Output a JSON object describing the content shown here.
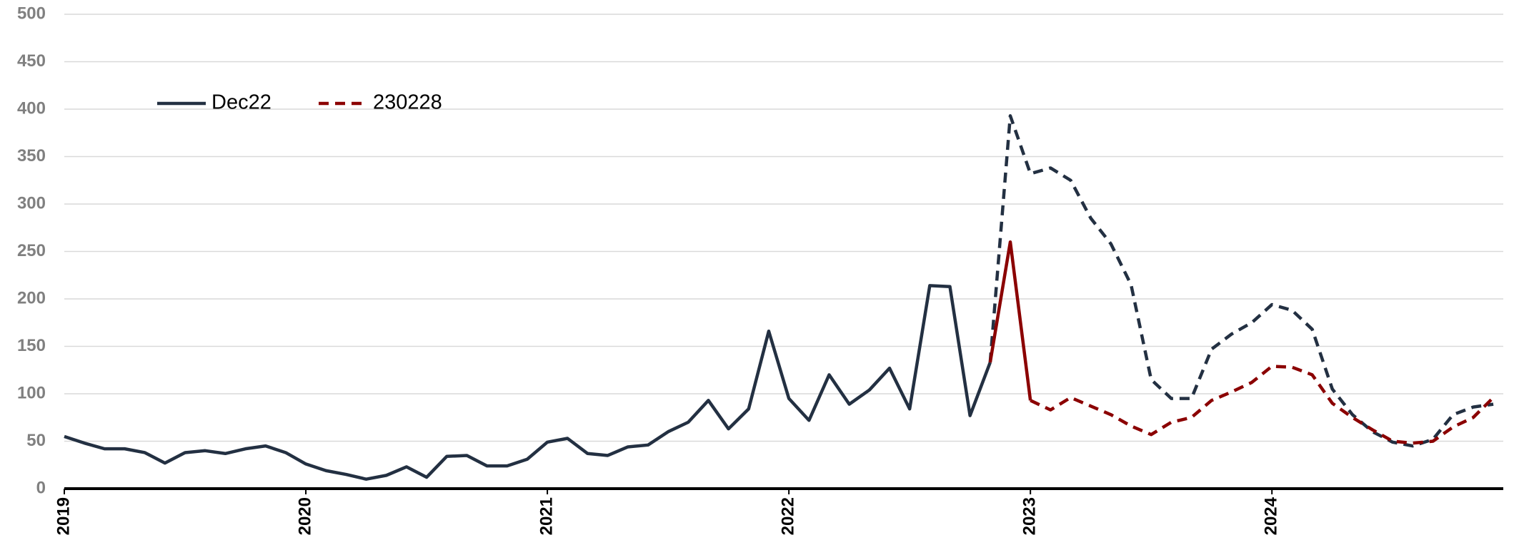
{
  "chart_data": {
    "type": "line",
    "categories": [
      "2019-01",
      "2019-02",
      "2019-03",
      "2019-04",
      "2019-05",
      "2019-06",
      "2019-07",
      "2019-08",
      "2019-09",
      "2019-10",
      "2019-11",
      "2019-12",
      "2020-01",
      "2020-02",
      "2020-03",
      "2020-04",
      "2020-05",
      "2020-06",
      "2020-07",
      "2020-08",
      "2020-09",
      "2020-10",
      "2020-11",
      "2020-12",
      "2021-01",
      "2021-02",
      "2021-03",
      "2021-04",
      "2021-05",
      "2021-06",
      "2021-07",
      "2021-08",
      "2021-09",
      "2021-10",
      "2021-11",
      "2021-12",
      "2022-01",
      "2022-02",
      "2022-03",
      "2022-04",
      "2022-05",
      "2022-06",
      "2022-07",
      "2022-08",
      "2022-09",
      "2022-10",
      "2022-11",
      "2022-12",
      "2023-01",
      "2023-02",
      "2023-03",
      "2023-04",
      "2023-05",
      "2023-06",
      "2023-07",
      "2023-08",
      "2023-09",
      "2023-10",
      "2023-11",
      "2023-12",
      "2024-01",
      "2024-02",
      "2024-03",
      "2024-04",
      "2024-05",
      "2024-06",
      "2024-07",
      "2024-08",
      "2024-09",
      "2024-10",
      "2024-11",
      "2024-12"
    ],
    "series": [
      {
        "name": "Dec22",
        "color": "#233042",
        "legend_line": "solid",
        "dashed_from": "2022-11",
        "values": [
          55,
          48,
          42,
          42,
          38,
          27,
          38,
          40,
          37,
          42,
          45,
          38,
          26,
          19,
          15,
          10,
          14,
          23,
          12,
          34,
          35,
          24,
          24,
          31,
          49,
          53,
          37,
          35,
          44,
          46,
          60,
          70,
          93,
          63,
          84,
          166,
          95,
          72,
          120,
          89,
          104,
          127,
          84,
          214,
          213,
          77,
          133,
          393,
          332,
          338,
          325,
          285,
          258,
          215,
          115,
          95,
          95,
          147,
          163,
          175,
          194,
          188,
          168,
          105,
          78,
          60,
          49,
          45,
          52,
          78,
          86,
          89
        ]
      },
      {
        "name": "230228",
        "color": "#8b0000",
        "legend_line": "dashed",
        "dashed_from": "2023-01",
        "values": [
          null,
          null,
          null,
          null,
          null,
          null,
          null,
          null,
          null,
          null,
          null,
          null,
          null,
          null,
          null,
          null,
          null,
          null,
          null,
          null,
          null,
          null,
          null,
          null,
          null,
          null,
          null,
          null,
          null,
          null,
          null,
          null,
          null,
          null,
          null,
          null,
          null,
          null,
          null,
          null,
          null,
          null,
          null,
          null,
          null,
          null,
          133,
          260,
          93,
          83,
          96,
          87,
          78,
          66,
          57,
          70,
          75,
          93,
          102,
          112,
          129,
          128,
          120,
          90,
          75,
          62,
          50,
          48,
          50,
          65,
          75,
          96
        ]
      }
    ],
    "xticks": [
      {
        "value": "2019-01",
        "label": "2019"
      },
      {
        "value": "2020-01",
        "label": "2020"
      },
      {
        "value": "2021-01",
        "label": "2021"
      },
      {
        "value": "2022-01",
        "label": "2022"
      },
      {
        "value": "2023-01",
        "label": "2023"
      },
      {
        "value": "2024-01",
        "label": "2024"
      }
    ],
    "ylim": [
      0,
      500
    ],
    "yticks": [
      0,
      50,
      100,
      150,
      200,
      250,
      300,
      350,
      400,
      450,
      500
    ],
    "grid": true,
    "legend": "top-left"
  }
}
